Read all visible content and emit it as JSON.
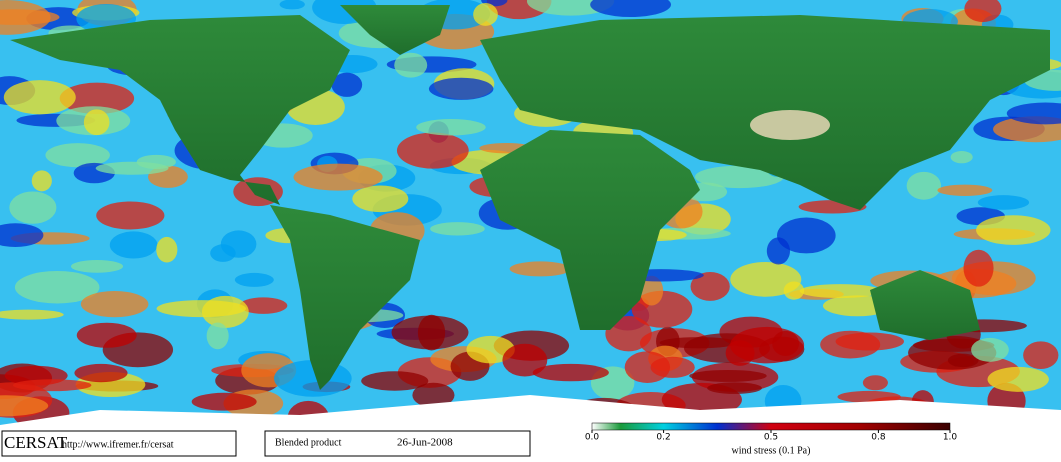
{
  "logo": "CERSAT",
  "url": "http://www.ifremer.fr/cersat",
  "product": "Blended product",
  "date": "26-Jun-2008",
  "colorbar": {
    "label": "wind stress (0.1 Pa)",
    "lim": [
      0,
      1
    ],
    "ticks": [
      {
        "value": 0,
        "label": "0.0"
      },
      0.2,
      0.5,
      0.8,
      {
        "value": 1,
        "label": "1.0"
      }
    ]
  }
}
